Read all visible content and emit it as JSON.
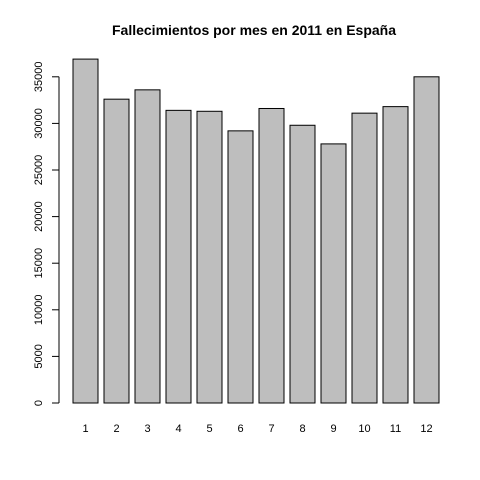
{
  "chart_data": {
    "type": "bar",
    "title": "Fallecimientos por mes en 2011 en España",
    "xlabel": "",
    "ylabel": "",
    "categories": [
      "1",
      "2",
      "3",
      "4",
      "5",
      "6",
      "7",
      "8",
      "9",
      "10",
      "11",
      "12"
    ],
    "values": [
      36900,
      32600,
      33600,
      31400,
      31300,
      29200,
      31600,
      29800,
      27800,
      31100,
      31800,
      35000
    ],
    "ylim": [
      0,
      37000
    ],
    "yticks": [
      0,
      5000,
      10000,
      15000,
      20000,
      25000,
      30000,
      35000
    ],
    "ytick_labels": [
      "0",
      "5000",
      "10000",
      "15000",
      "20000",
      "25000",
      "30000",
      "35000"
    ],
    "bar_color": "#bebebe",
    "grid": false,
    "legend": "none"
  }
}
